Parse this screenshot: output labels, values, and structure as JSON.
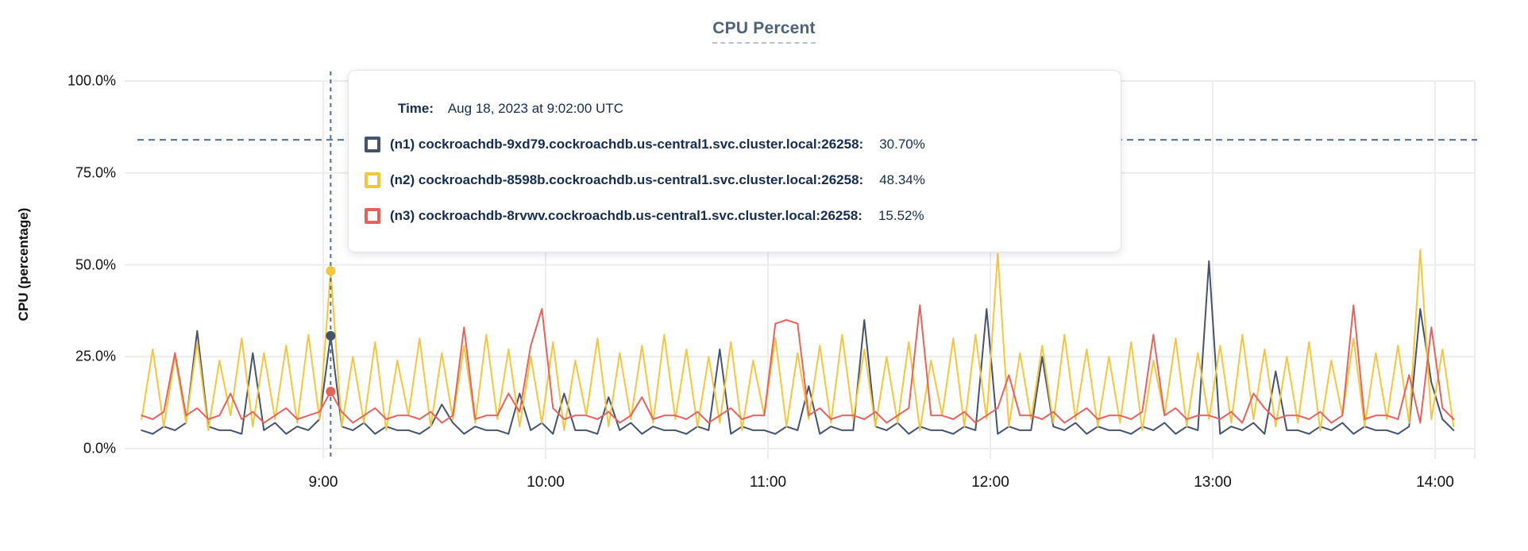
{
  "title": "CPU Percent",
  "tooltip": {
    "time_label": "Time:",
    "time_value": "Aug 18, 2023 at 9:02:00 UTC",
    "rows": [
      {
        "name": "(n1) cockroachdb-9xd79.cockroachdb.us-central1.svc.cluster.local:26258:",
        "value": "30.70%"
      },
      {
        "name": "(n2) cockroachdb-8598b.cockroachdb.us-central1.svc.cluster.local:26258:",
        "value": "48.34%"
      },
      {
        "name": "(n3) cockroachdb-8rvwv.cockroachdb.us-central1.svc.cluster.local:26258:",
        "value": "15.52%"
      }
    ]
  },
  "colors": {
    "accent_title": "#51617c",
    "gridline": "#ececec",
    "dashed_guides": "#52708a",
    "tooltip_text": "#152c52"
  },
  "chart_data": {
    "type": "line",
    "title": "CPU Percent",
    "xlabel": "",
    "ylabel": "CPU (percentage)",
    "ylim": [
      0,
      100
    ],
    "grid": true,
    "y_ticks": [
      0,
      25,
      50,
      75,
      100
    ],
    "y_tick_labels": [
      "0.0%",
      "25.0%",
      "50.0%",
      "75.0%",
      "100.0%"
    ],
    "x_tick_minutes": [
      540,
      600,
      660,
      720,
      780,
      840
    ],
    "x_tick_labels": [
      "9:00",
      "10:00",
      "11:00",
      "12:00",
      "13:00",
      "14:00"
    ],
    "start_minute": 491,
    "step_minutes": 3,
    "threshold_pct": 84,
    "hover": {
      "minute": 542,
      "time_text": "Aug 18, 2023 at 9:02:00 UTC",
      "values": [
        30.7,
        48.34,
        15.52
      ]
    },
    "series": [
      {
        "name": "(n1) cockroachdb-9xd79.cockroachdb.us-central1.svc.cluster.local:26258",
        "color": "#45536e",
        "values": [
          5,
          4,
          6,
          5,
          7,
          32,
          6,
          5,
          5,
          4,
          26,
          5,
          7,
          4,
          6,
          5,
          8,
          30.7,
          6,
          5,
          7,
          4,
          6,
          5,
          5,
          4,
          6,
          12,
          7,
          4,
          6,
          5,
          5,
          4,
          15,
          5,
          7,
          4,
          15,
          5,
          5,
          4,
          14,
          5,
          7,
          4,
          6,
          5,
          5,
          4,
          6,
          5,
          27,
          4,
          6,
          5,
          5,
          4,
          6,
          5,
          17,
          4,
          6,
          5,
          5,
          35,
          6,
          5,
          7,
          4,
          6,
          5,
          5,
          4,
          6,
          5,
          38,
          4,
          6,
          5,
          5,
          25,
          6,
          5,
          7,
          4,
          6,
          5,
          5,
          4,
          6,
          5,
          7,
          4,
          6,
          5,
          51,
          4,
          6,
          5,
          7,
          4,
          21,
          5,
          5,
          4,
          6,
          5,
          7,
          4,
          6,
          5,
          5,
          4,
          6,
          38,
          18,
          8,
          5
        ]
      },
      {
        "name": "(n2) cockroachdb-8598b.cockroachdb.us-central1.svc.cluster.local:26258",
        "color": "#f5c63d",
        "values": [
          8,
          27,
          6,
          25,
          7,
          29,
          5,
          24,
          9,
          30,
          6,
          26,
          8,
          28,
          7,
          31,
          8,
          48.3,
          6,
          25,
          7,
          29,
          5,
          24,
          9,
          30,
          6,
          26,
          8,
          28,
          7,
          31,
          8,
          27,
          6,
          25,
          7,
          29,
          5,
          24,
          9,
          30,
          6,
          26,
          8,
          28,
          7,
          31,
          8,
          27,
          6,
          25,
          7,
          29,
          5,
          24,
          9,
          30,
          6,
          26,
          8,
          28,
          7,
          31,
          8,
          27,
          6,
          25,
          7,
          29,
          5,
          24,
          9,
          30,
          6,
          31,
          8,
          53,
          6,
          26,
          8,
          28,
          7,
          31,
          8,
          27,
          6,
          25,
          7,
          29,
          5,
          24,
          9,
          30,
          6,
          26,
          8,
          28,
          7,
          31,
          8,
          27,
          6,
          25,
          7,
          29,
          5,
          24,
          9,
          30,
          6,
          26,
          8,
          28,
          7,
          54,
          8,
          27,
          6
        ]
      },
      {
        "name": "(n3) cockroachdb-8rvwv.cockroachdb.us-central1.svc.cluster.local:26258",
        "color": "#e4635c",
        "values": [
          9,
          8,
          10,
          26,
          9,
          11,
          8,
          9,
          15,
          8,
          10,
          7,
          9,
          11,
          8,
          9,
          10,
          15.5,
          10,
          7,
          9,
          11,
          8,
          9,
          9,
          8,
          10,
          7,
          9,
          33,
          8,
          9,
          9,
          15,
          10,
          28,
          38,
          11,
          8,
          9,
          9,
          8,
          10,
          7,
          9,
          14,
          8,
          9,
          9,
          8,
          10,
          7,
          9,
          11,
          8,
          9,
          9,
          34,
          35,
          34,
          9,
          11,
          8,
          9,
          9,
          8,
          10,
          7,
          9,
          11,
          39,
          9,
          9,
          8,
          10,
          7,
          9,
          11,
          20,
          9,
          9,
          8,
          10,
          7,
          9,
          11,
          8,
          9,
          9,
          8,
          10,
          31,
          9,
          11,
          8,
          9,
          9,
          8,
          10,
          7,
          15,
          11,
          8,
          9,
          9,
          8,
          10,
          7,
          9,
          39,
          8,
          9,
          9,
          8,
          20,
          7,
          33,
          11,
          8
        ]
      }
    ]
  }
}
